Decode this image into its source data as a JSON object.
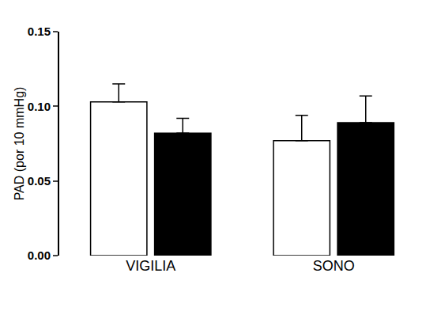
{
  "chart_data": {
    "type": "bar",
    "y_label": "PAD (por 10 mmHg)",
    "categories": [
      "VIGILIA",
      "SONO"
    ],
    "series": [
      {
        "color": "#ffffff",
        "values": [
          0.103,
          0.077
        ],
        "errors": [
          0.012,
          0.017
        ]
      },
      {
        "color": "#000000",
        "values": [
          0.082,
          0.089
        ],
        "errors": [
          0.01,
          0.018
        ]
      }
    ],
    "ylim": [
      0,
      0.15
    ],
    "yticks": [
      {
        "value": 0,
        "label": "0.00"
      },
      {
        "value": 0.05,
        "label": "0.05"
      },
      {
        "value": 0.1,
        "label": "0.10"
      },
      {
        "value": 0.15,
        "label": "0.15"
      }
    ],
    "grid": false
  }
}
